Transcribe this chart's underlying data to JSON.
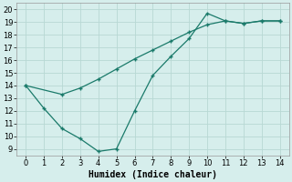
{
  "xlabel": "Humidex (Indice chaleur)",
  "background_color": "#d6eeec",
  "grid_color": "#b8d8d4",
  "line_color": "#1a7a6a",
  "xlim": [
    -0.5,
    14.5
  ],
  "ylim": [
    8.5,
    20.5
  ],
  "xticks": [
    0,
    1,
    2,
    3,
    4,
    5,
    6,
    7,
    8,
    9,
    10,
    11,
    12,
    13,
    14
  ],
  "yticks": [
    9,
    10,
    11,
    12,
    13,
    14,
    15,
    16,
    17,
    18,
    19,
    20
  ],
  "line1_x": [
    0,
    1,
    2,
    3,
    4,
    5,
    6,
    7,
    8,
    9,
    10,
    11,
    12,
    13,
    14
  ],
  "line1_y": [
    14.0,
    12.2,
    10.6,
    9.8,
    8.8,
    9.0,
    12.0,
    14.8,
    16.3,
    17.7,
    19.7,
    19.1,
    18.9,
    19.1,
    19.1
  ],
  "line2_x": [
    0,
    2,
    3,
    4,
    5,
    6,
    7,
    8,
    9,
    10,
    11,
    12,
    13,
    14
  ],
  "line2_y": [
    14.0,
    13.3,
    13.8,
    14.5,
    15.3,
    16.1,
    16.8,
    17.5,
    18.2,
    18.8,
    19.1,
    18.9,
    19.1,
    19.1
  ],
  "xlabel_fontsize": 7,
  "tick_fontsize": 6
}
